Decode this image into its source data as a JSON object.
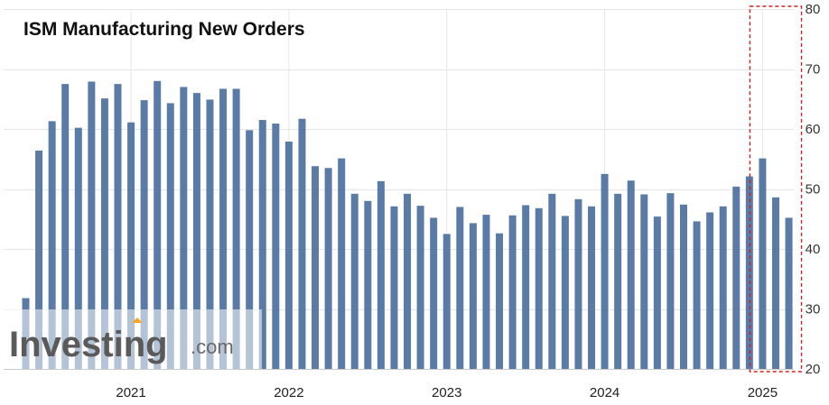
{
  "chart_data": {
    "type": "bar",
    "title": "ISM Manufacturing New Orders",
    "y_axis_position": "right",
    "ylim": [
      20,
      80
    ],
    "yticks": [
      20,
      30,
      40,
      50,
      60,
      70,
      80
    ],
    "grid": true,
    "x_year_labels": [
      {
        "label": "2021",
        "month": "2021-01"
      },
      {
        "label": "2022",
        "month": "2022-01"
      },
      {
        "label": "2023",
        "month": "2023-01"
      },
      {
        "label": "2024",
        "month": "2024-01"
      },
      {
        "label": "2025",
        "month": "2025-01"
      }
    ],
    "categories": [
      "2020-05",
      "2020-06",
      "2020-07",
      "2020-08",
      "2020-09",
      "2020-10",
      "2020-11",
      "2020-12",
      "2021-01",
      "2021-02",
      "2021-03",
      "2021-04",
      "2021-05",
      "2021-06",
      "2021-07",
      "2021-08",
      "2021-09",
      "2021-10",
      "2021-11",
      "2021-12",
      "2022-01",
      "2022-02",
      "2022-03",
      "2022-04",
      "2022-05",
      "2022-06",
      "2022-07",
      "2022-08",
      "2022-09",
      "2022-10",
      "2022-11",
      "2022-12",
      "2023-01",
      "2023-02",
      "2023-03",
      "2023-04",
      "2023-05",
      "2023-06",
      "2023-07",
      "2023-08",
      "2023-09",
      "2023-10",
      "2023-11",
      "2023-12",
      "2024-01",
      "2024-02",
      "2024-03",
      "2024-04",
      "2024-05",
      "2024-06",
      "2024-07",
      "2024-08",
      "2024-09",
      "2024-10",
      "2024-11",
      "2024-12",
      "2025-01",
      "2025-02",
      "2025-03"
    ],
    "values": [
      31.8,
      56.4,
      61.3,
      67.5,
      60.2,
      67.9,
      65.1,
      67.5,
      61.1,
      64.8,
      68.0,
      64.3,
      67.0,
      66.0,
      64.9,
      66.7,
      66.7,
      59.8,
      61.5,
      60.9,
      57.9,
      61.7,
      53.8,
      53.5,
      55.1,
      49.2,
      48.0,
      51.3,
      47.1,
      49.2,
      47.2,
      45.2,
      42.5,
      47.0,
      44.3,
      45.7,
      42.6,
      45.6,
      47.3,
      46.8,
      49.2,
      45.5,
      48.3,
      47.1,
      52.5,
      49.2,
      51.4,
      49.1,
      45.4,
      49.3,
      47.4,
      44.6,
      46.1,
      47.1,
      50.4,
      52.1,
      55.1,
      48.6,
      45.2
    ],
    "highlight": {
      "from": "2025-01",
      "to": "2025-03",
      "style": "red-dashed-box"
    },
    "bar_color": "#5b7ba7",
    "grid_color": "#e6e6e6",
    "highlight_color": "#cc2222"
  },
  "watermark": {
    "brand": "Investing",
    "domain": ".com",
    "accent_color": "#f5a623"
  }
}
